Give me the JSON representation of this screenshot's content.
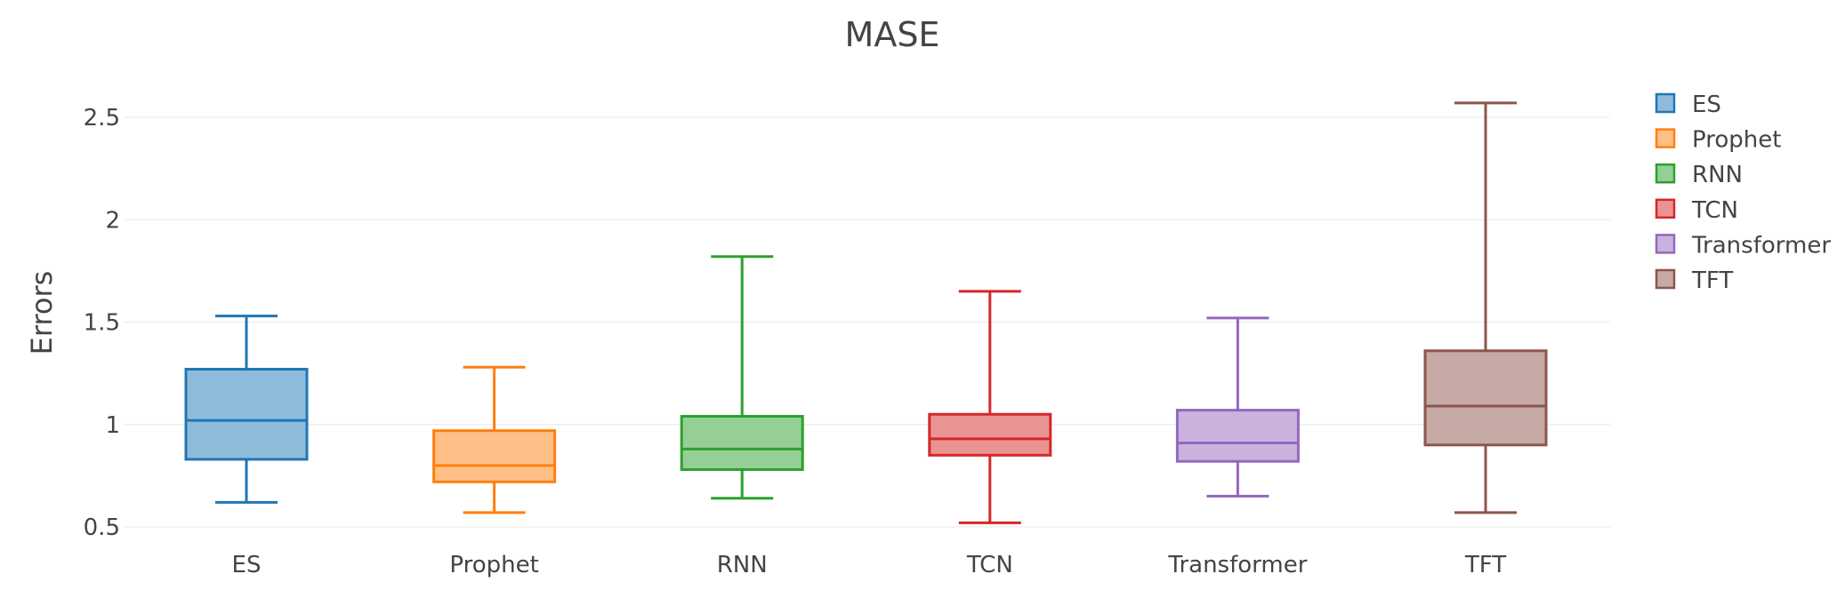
{
  "chart_data": {
    "type": "box",
    "title": "MASE",
    "xlabel": "",
    "ylabel": "Errors",
    "ylim": [
      0.5,
      2.6
    ],
    "yticks": [
      0.5,
      1,
      1.5,
      2,
      2.5
    ],
    "ytick_labels": [
      "0.5",
      "1",
      "1.5",
      "2",
      "2.5"
    ],
    "grid": true,
    "legend_position": "top-right",
    "categories": [
      "ES",
      "Prophet",
      "RNN",
      "TCN",
      "Transformer",
      "TFT"
    ],
    "series": [
      {
        "name": "ES",
        "color": "#1f77b4",
        "fill": "#8fbbdb",
        "min": 0.62,
        "q1": 0.83,
        "median": 1.02,
        "q3": 1.27,
        "max": 1.53
      },
      {
        "name": "Prophet",
        "color": "#ff7f0e",
        "fill": "#ffbf86",
        "min": 0.57,
        "q1": 0.72,
        "median": 0.8,
        "q3": 0.97,
        "max": 1.28
      },
      {
        "name": "RNN",
        "color": "#2ca02c",
        "fill": "#95cf95",
        "min": 0.64,
        "q1": 0.78,
        "median": 0.88,
        "q3": 1.04,
        "max": 1.82
      },
      {
        "name": "TCN",
        "color": "#d62728",
        "fill": "#ea9393",
        "min": 0.52,
        "q1": 0.85,
        "median": 0.93,
        "q3": 1.05,
        "max": 1.65
      },
      {
        "name": "Transformer",
        "color": "#9467bd",
        "fill": "#c9b3de",
        "min": 0.65,
        "q1": 0.82,
        "median": 0.91,
        "q3": 1.07,
        "max": 1.52
      },
      {
        "name": "TFT",
        "color": "#8c564b",
        "fill": "#c5aaa5",
        "min": 0.57,
        "q1": 0.9,
        "median": 1.09,
        "q3": 1.36,
        "max": 2.57
      }
    ]
  }
}
